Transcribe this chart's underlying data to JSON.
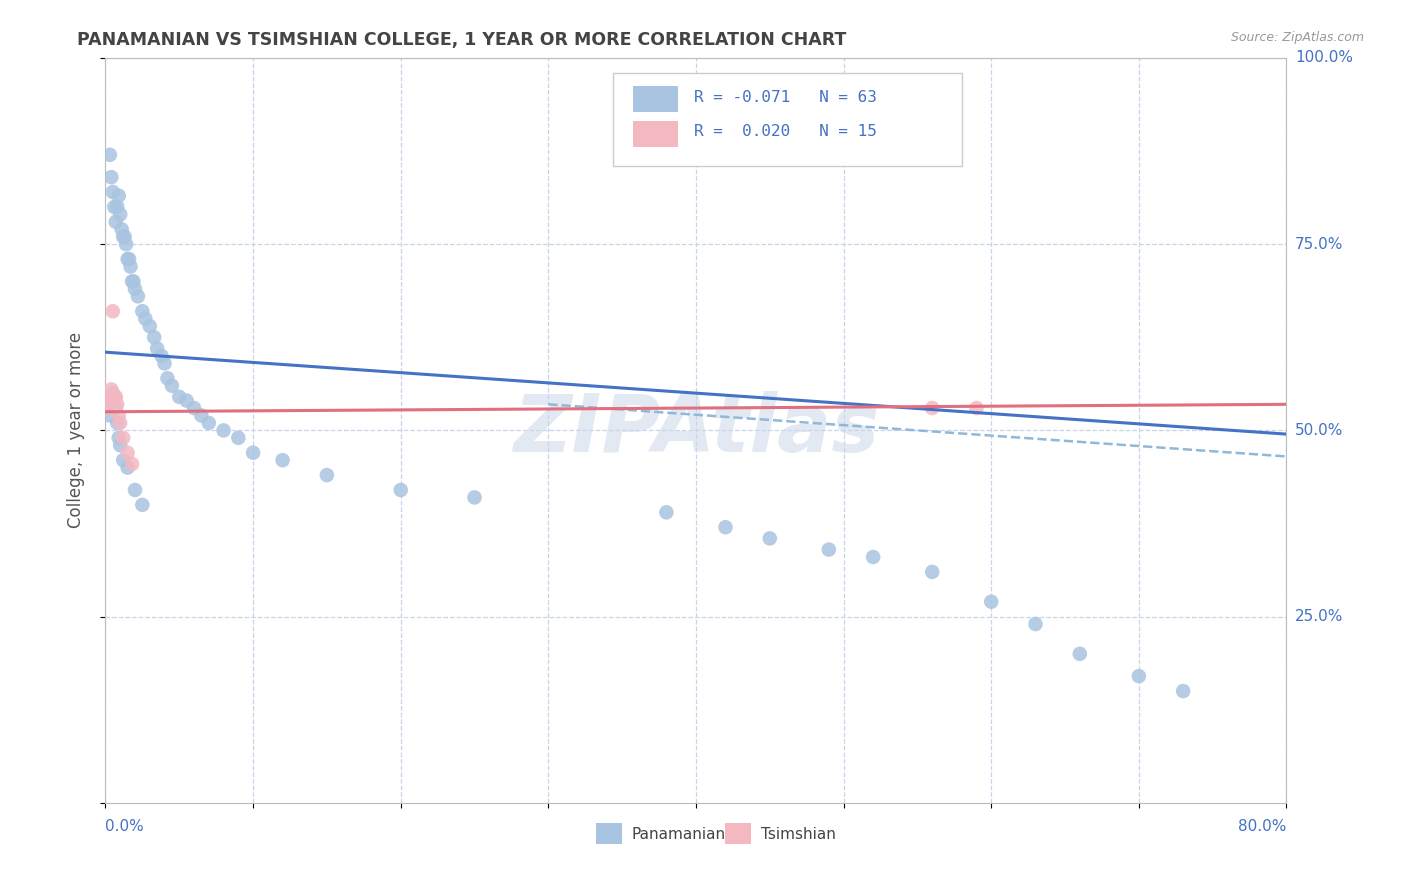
{
  "title": "PANAMANIAN VS TSIMSHIAN COLLEGE, 1 YEAR OR MORE CORRELATION CHART",
  "source": "Source: ZipAtlas.com",
  "ylabel": "College, 1 year or more",
  "pan_color": "#a8c4e0",
  "tsi_color": "#f4b8c1",
  "pan_line_color": "#4472c4",
  "tsi_line_color": "#e07080",
  "dash_line_color": "#90b8d8",
  "watermark": "ZIPAtlas",
  "xmin": 0.0,
  "xmax": 0.8,
  "ymin": 0.0,
  "ymax": 1.0,
  "pan_trend": [
    0.0,
    0.8,
    0.605,
    0.495
  ],
  "tsi_trend_solid": [
    0.0,
    0.35,
    0.525,
    0.527
  ],
  "tsi_trend_line": [
    0.0,
    0.8,
    0.525,
    0.535
  ],
  "dash_trend": [
    0.3,
    0.8,
    0.535,
    0.465
  ],
  "pan_x": [
    0.003,
    0.004,
    0.005,
    0.006,
    0.007,
    0.008,
    0.009,
    0.01,
    0.011,
    0.012,
    0.013,
    0.014,
    0.015,
    0.016,
    0.017,
    0.018,
    0.019,
    0.02,
    0.022,
    0.025,
    0.027,
    0.03,
    0.033,
    0.035,
    0.038,
    0.04,
    0.042,
    0.045,
    0.05,
    0.055,
    0.06,
    0.065,
    0.07,
    0.08,
    0.09,
    0.1,
    0.12,
    0.15,
    0.2,
    0.25,
    0.003,
    0.004,
    0.005,
    0.006,
    0.007,
    0.008,
    0.009,
    0.01,
    0.012,
    0.015,
    0.02,
    0.025,
    0.38,
    0.42,
    0.45,
    0.49,
    0.52,
    0.56,
    0.6,
    0.63,
    0.66,
    0.7,
    0.73
  ],
  "pan_y": [
    0.87,
    0.84,
    0.82,
    0.8,
    0.78,
    0.8,
    0.815,
    0.79,
    0.77,
    0.76,
    0.76,
    0.75,
    0.73,
    0.73,
    0.72,
    0.7,
    0.7,
    0.69,
    0.68,
    0.66,
    0.65,
    0.64,
    0.625,
    0.61,
    0.6,
    0.59,
    0.57,
    0.56,
    0.545,
    0.54,
    0.53,
    0.52,
    0.51,
    0.5,
    0.49,
    0.47,
    0.46,
    0.44,
    0.42,
    0.41,
    0.52,
    0.54,
    0.55,
    0.545,
    0.53,
    0.51,
    0.49,
    0.48,
    0.46,
    0.45,
    0.42,
    0.4,
    0.39,
    0.37,
    0.355,
    0.34,
    0.33,
    0.31,
    0.27,
    0.24,
    0.2,
    0.17,
    0.15
  ],
  "tsi_x": [
    0.002,
    0.003,
    0.004,
    0.005,
    0.006,
    0.007,
    0.008,
    0.009,
    0.01,
    0.012,
    0.015,
    0.018,
    0.56,
    0.59,
    0.005
  ],
  "tsi_y": [
    0.54,
    0.53,
    0.555,
    0.545,
    0.545,
    0.545,
    0.535,
    0.52,
    0.51,
    0.49,
    0.47,
    0.455,
    0.53,
    0.53,
    0.66
  ]
}
